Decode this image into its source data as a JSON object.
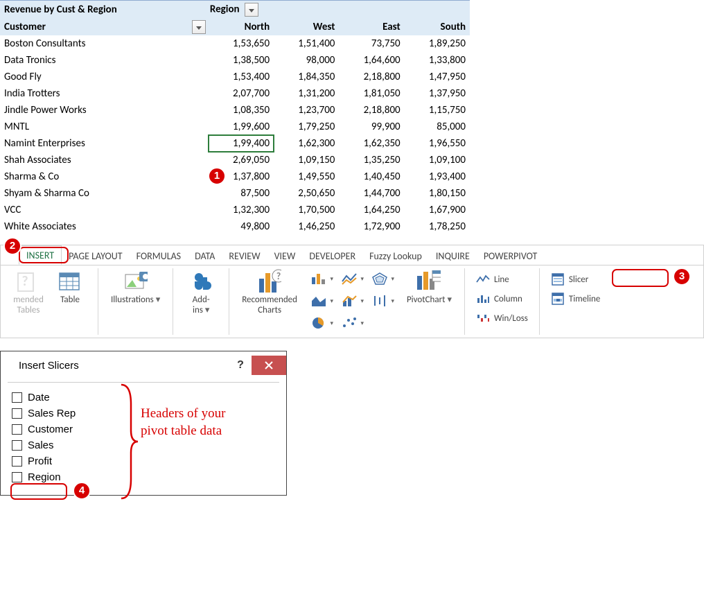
{
  "pivot": {
    "title": "Revenue by Cust & Region",
    "colField": "Region",
    "rowFieldLabel": "Customer",
    "regions": [
      "North",
      "West",
      "East",
      "South"
    ],
    "rows": [
      {
        "customer": "Boston Consultants",
        "values": [
          "1,53,650",
          "1,51,400",
          "73,750",
          "1,89,250"
        ]
      },
      {
        "customer": "Data Tronics",
        "values": [
          "1,38,500",
          "98,000",
          "1,64,600",
          "1,33,800"
        ]
      },
      {
        "customer": "Good Fly",
        "values": [
          "1,53,400",
          "1,84,350",
          "2,18,800",
          "1,47,950"
        ]
      },
      {
        "customer": "India Trotters",
        "values": [
          "2,07,700",
          "1,31,200",
          "1,81,050",
          "1,37,950"
        ]
      },
      {
        "customer": "Jindle Power Works",
        "values": [
          "1,08,350",
          "1,23,700",
          "2,18,800",
          "1,15,750"
        ]
      },
      {
        "customer": "MNTL",
        "values": [
          "1,99,600",
          "1,79,250",
          "99,900",
          "85,000"
        ]
      },
      {
        "customer": "Namint Enterprises",
        "values": [
          "1,99,400",
          "1,62,300",
          "1,62,350",
          "1,96,550"
        ]
      },
      {
        "customer": "Shah Associates",
        "values": [
          "2,69,050",
          "1,09,150",
          "1,35,250",
          "1,09,100"
        ]
      },
      {
        "customer": "Sharma & Co",
        "values": [
          "1,37,800",
          "1,49,550",
          "1,40,450",
          "1,93,400"
        ]
      },
      {
        "customer": "Shyam & Sharma Co",
        "values": [
          "87,500",
          "2,50,650",
          "1,44,700",
          "1,80,150"
        ]
      },
      {
        "customer": "VCC",
        "values": [
          "1,32,300",
          "1,70,500",
          "1,64,250",
          "1,67,900"
        ]
      },
      {
        "customer": "White Associates",
        "values": [
          "49,800",
          "1,46,250",
          "1,72,900",
          "1,78,250"
        ]
      }
    ],
    "selected": {
      "row": 6,
      "col": 0
    },
    "colors": {
      "headerBg": "#deebf6",
      "selBorder": "#2d7d3b"
    }
  },
  "ribbon": {
    "tabs": [
      "INSERT",
      "PAGE LAYOUT",
      "FORMULAS",
      "DATA",
      "REVIEW",
      "VIEW",
      "DEVELOPER",
      "Fuzzy Lookup",
      "INQUIRE",
      "POWERPIVOT"
    ],
    "activeTab": "INSERT",
    "buttons": {
      "recTables": "mended\nTables",
      "table": "Table",
      "illustrations": "Illustrations",
      "addins": "Add-\nins",
      "recCharts": "Recommended\nCharts",
      "pivotChart": "PivotChart"
    },
    "sparklines": {
      "line": "Line",
      "column": "Column",
      "winloss": "Win/Loss"
    },
    "filters": {
      "slicer": "Slicer",
      "timeline": "Timeline"
    }
  },
  "dialog": {
    "title": "Insert Slicers",
    "items": [
      "Date",
      "Sales Rep",
      "Customer",
      "Sales",
      "Profit",
      "Region"
    ],
    "note": "Headers of your\npivot table data",
    "highlightIndex": 5
  },
  "badges": {
    "b1": "1",
    "b2": "2",
    "b3": "3",
    "b4": "4"
  }
}
